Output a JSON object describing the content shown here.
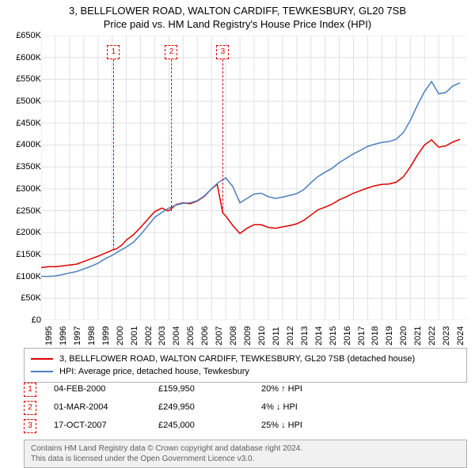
{
  "title_line1": "3, BELLFLOWER ROAD, WALTON CARDIFF, TEWKESBURY, GL20 7SB",
  "title_line2": "Price paid vs. HM Land Registry's House Price Index (HPI)",
  "chart": {
    "type": "line",
    "background_color": "#ffffff",
    "grid_color": "#e0e0e0",
    "axis_color": "#808080",
    "y_min": 0,
    "y_max": 650000,
    "y_step": 50000,
    "y_ticks": [
      "£0",
      "£50K",
      "£100K",
      "£150K",
      "£200K",
      "£250K",
      "£300K",
      "£350K",
      "£400K",
      "£450K",
      "£500K",
      "£550K",
      "£600K",
      "£650K"
    ],
    "x_min": 1995,
    "x_max": 2025,
    "x_ticks": [
      1995,
      1996,
      1997,
      1998,
      1999,
      2000,
      2001,
      2002,
      2003,
      2004,
      2005,
      2006,
      2007,
      2008,
      2009,
      2010,
      2011,
      2012,
      2013,
      2014,
      2015,
      2016,
      2017,
      2018,
      2019,
      2020,
      2021,
      2022,
      2023,
      2024
    ],
    "series": [
      {
        "label": "3, BELLFLOWER ROAD, WALTON CARDIFF, TEWKESBURY, GL20 7SB (detached house)",
        "color": "#dd0000",
        "width": 1.5,
        "data": [
          [
            1995,
            120000
          ],
          [
            1995.5,
            122000
          ],
          [
            1996,
            122000
          ],
          [
            1996.5,
            124000
          ],
          [
            1997,
            126000
          ],
          [
            1997.5,
            128000
          ],
          [
            1998,
            134000
          ],
          [
            1998.5,
            140000
          ],
          [
            1999,
            146000
          ],
          [
            1999.5,
            153000
          ],
          [
            2000,
            159950
          ],
          [
            2000.3,
            163000
          ],
          [
            2000.7,
            172000
          ],
          [
            2001,
            183000
          ],
          [
            2001.5,
            195000
          ],
          [
            2002,
            212000
          ],
          [
            2002.5,
            230000
          ],
          [
            2003,
            248000
          ],
          [
            2003.5,
            256000
          ],
          [
            2003.9,
            249950
          ],
          [
            2004,
            250000
          ],
          [
            2004.5,
            264000
          ],
          [
            2005,
            268000
          ],
          [
            2005.5,
            266000
          ],
          [
            2006,
            272000
          ],
          [
            2006.5,
            283000
          ],
          [
            2007,
            300000
          ],
          [
            2007.4,
            310000
          ],
          [
            2007.79,
            245000
          ],
          [
            2008,
            238000
          ],
          [
            2008.5,
            216000
          ],
          [
            2009,
            198000
          ],
          [
            2009.5,
            210000
          ],
          [
            2010,
            218000
          ],
          [
            2010.5,
            218000
          ],
          [
            2011,
            212000
          ],
          [
            2011.5,
            210000
          ],
          [
            2012,
            213000
          ],
          [
            2012.5,
            216000
          ],
          [
            2013,
            220000
          ],
          [
            2013.5,
            228000
          ],
          [
            2014,
            240000
          ],
          [
            2014.5,
            252000
          ],
          [
            2015,
            258000
          ],
          [
            2015.5,
            265000
          ],
          [
            2016,
            275000
          ],
          [
            2016.5,
            282000
          ],
          [
            2017,
            290000
          ],
          [
            2017.5,
            296000
          ],
          [
            2018,
            302000
          ],
          [
            2018.5,
            307000
          ],
          [
            2019,
            310000
          ],
          [
            2019.5,
            311000
          ],
          [
            2020,
            315000
          ],
          [
            2020.5,
            327000
          ],
          [
            2021,
            350000
          ],
          [
            2021.5,
            377000
          ],
          [
            2022,
            400000
          ],
          [
            2022.5,
            412000
          ],
          [
            2023,
            395000
          ],
          [
            2023.5,
            398000
          ],
          [
            2024,
            407000
          ],
          [
            2024.5,
            413000
          ]
        ]
      },
      {
        "label": "HPI: Average price, detached house, Tewkesbury",
        "color": "#4a7ebb",
        "width": 1.5,
        "data": [
          [
            1995,
            100000
          ],
          [
            1995.5,
            100000
          ],
          [
            1996,
            101000
          ],
          [
            1996.5,
            104000
          ],
          [
            1997,
            108000
          ],
          [
            1997.5,
            111000
          ],
          [
            1998,
            117000
          ],
          [
            1998.5,
            123000
          ],
          [
            1999,
            130000
          ],
          [
            1999.5,
            140000
          ],
          [
            2000,
            148000
          ],
          [
            2000.5,
            158000
          ],
          [
            2001,
            167000
          ],
          [
            2001.5,
            178000
          ],
          [
            2002,
            195000
          ],
          [
            2002.5,
            215000
          ],
          [
            2003,
            235000
          ],
          [
            2003.5,
            246000
          ],
          [
            2004,
            256000
          ],
          [
            2004.5,
            263000
          ],
          [
            2005,
            267000
          ],
          [
            2005.5,
            268000
          ],
          [
            2006,
            273000
          ],
          [
            2006.5,
            284000
          ],
          [
            2007,
            300000
          ],
          [
            2007.5,
            315000
          ],
          [
            2008,
            325000
          ],
          [
            2008.5,
            305000
          ],
          [
            2009,
            268000
          ],
          [
            2009.5,
            278000
          ],
          [
            2010,
            288000
          ],
          [
            2010.5,
            290000
          ],
          [
            2011,
            282000
          ],
          [
            2011.5,
            278000
          ],
          [
            2012,
            281000
          ],
          [
            2012.5,
            285000
          ],
          [
            2013,
            289000
          ],
          [
            2013.5,
            298000
          ],
          [
            2014,
            314000
          ],
          [
            2014.5,
            328000
          ],
          [
            2015,
            338000
          ],
          [
            2015.5,
            347000
          ],
          [
            2016,
            360000
          ],
          [
            2016.5,
            370000
          ],
          [
            2017,
            380000
          ],
          [
            2017.5,
            388000
          ],
          [
            2018,
            397000
          ],
          [
            2018.5,
            402000
          ],
          [
            2019,
            406000
          ],
          [
            2019.5,
            408000
          ],
          [
            2020,
            413000
          ],
          [
            2020.5,
            428000
          ],
          [
            2021,
            456000
          ],
          [
            2021.5,
            491000
          ],
          [
            2022,
            522000
          ],
          [
            2022.5,
            545000
          ],
          [
            2023,
            517000
          ],
          [
            2023.5,
            520000
          ],
          [
            2024,
            535000
          ],
          [
            2024.5,
            542000
          ]
        ]
      }
    ],
    "markers": [
      {
        "n": "1",
        "x": 2000.096,
        "date": "04-FEB-2000",
        "price": "£159,950",
        "pct": "20% ↑ HPI",
        "y_val": 159950
      },
      {
        "n": "2",
        "x": 2004.167,
        "date": "01-MAR-2004",
        "price": "£249,950",
        "pct": "4% ↓ HPI",
        "y_val": 249950
      },
      {
        "n": "3",
        "x": 2007.795,
        "date": "17-OCT-2007",
        "price": "£245,000",
        "pct": "25% ↓ HPI",
        "y_val": 245000
      }
    ]
  },
  "attribution": {
    "line1": "Contains HM Land Registry data © Crown copyright and database right 2024.",
    "line2": "This data is licensed under the Open Government Licence v3.0."
  }
}
